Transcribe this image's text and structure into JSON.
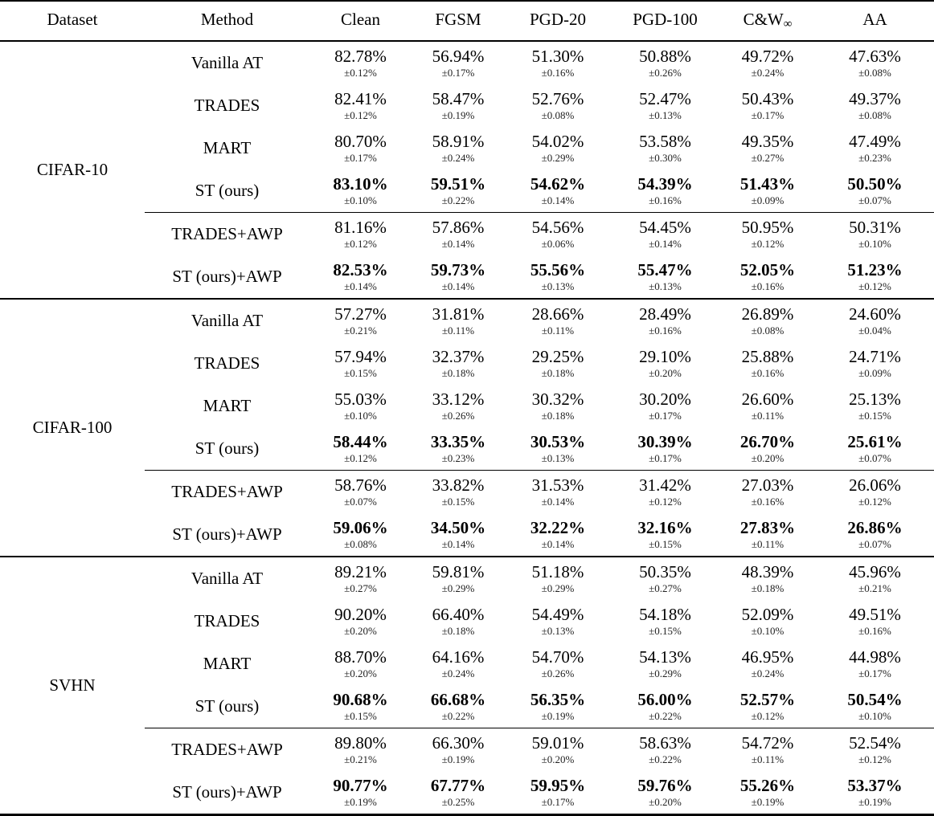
{
  "colors": {
    "text": "#000000",
    "rule": "#000000",
    "background": "#ffffff"
  },
  "table": {
    "columns": [
      {
        "label": "Dataset",
        "sub": ""
      },
      {
        "label": "Method",
        "sub": ""
      },
      {
        "label": "Clean",
        "sub": ""
      },
      {
        "label": "FGSM",
        "sub": ""
      },
      {
        "label": "PGD-20",
        "sub": ""
      },
      {
        "label": "PGD-100",
        "sub": ""
      },
      {
        "label": "C&W",
        "sub": "∞"
      },
      {
        "label": "AA",
        "sub": ""
      }
    ],
    "sections": [
      {
        "dataset": "CIFAR-10",
        "rows": [
          {
            "method": "Vanilla AT",
            "bold": false,
            "midrule_above": false,
            "cells": [
              {
                "v": "82.78%",
                "e": "±0.12%"
              },
              {
                "v": "56.94%",
                "e": "±0.17%"
              },
              {
                "v": "51.30%",
                "e": "±0.16%"
              },
              {
                "v": "50.88%",
                "e": "±0.26%"
              },
              {
                "v": "49.72%",
                "e": "±0.24%"
              },
              {
                "v": "47.63%",
                "e": "±0.08%"
              }
            ]
          },
          {
            "method": "TRADES",
            "bold": false,
            "midrule_above": false,
            "cells": [
              {
                "v": "82.41%",
                "e": "±0.12%"
              },
              {
                "v": "58.47%",
                "e": "±0.19%"
              },
              {
                "v": "52.76%",
                "e": "±0.08%"
              },
              {
                "v": "52.47%",
                "e": "±0.13%"
              },
              {
                "v": "50.43%",
                "e": "±0.17%"
              },
              {
                "v": "49.37%",
                "e": "±0.08%"
              }
            ]
          },
          {
            "method": "MART",
            "bold": false,
            "midrule_above": false,
            "cells": [
              {
                "v": "80.70%",
                "e": "±0.17%"
              },
              {
                "v": "58.91%",
                "e": "±0.24%"
              },
              {
                "v": "54.02%",
                "e": "±0.29%"
              },
              {
                "v": "53.58%",
                "e": "±0.30%"
              },
              {
                "v": "49.35%",
                "e": "±0.27%"
              },
              {
                "v": "47.49%",
                "e": "±0.23%"
              }
            ]
          },
          {
            "method": "ST (ours)",
            "bold": true,
            "midrule_above": false,
            "cells": [
              {
                "v": "83.10%",
                "e": "±0.10%"
              },
              {
                "v": "59.51%",
                "e": "±0.22%"
              },
              {
                "v": "54.62%",
                "e": "±0.14%"
              },
              {
                "v": "54.39%",
                "e": "±0.16%"
              },
              {
                "v": "51.43%",
                "e": "±0.09%"
              },
              {
                "v": "50.50%",
                "e": "±0.07%"
              }
            ]
          },
          {
            "method": "TRADES+AWP",
            "bold": false,
            "midrule_above": true,
            "cells": [
              {
                "v": "81.16%",
                "e": "±0.12%"
              },
              {
                "v": "57.86%",
                "e": "±0.14%"
              },
              {
                "v": "54.56%",
                "e": "±0.06%"
              },
              {
                "v": "54.45%",
                "e": "±0.14%"
              },
              {
                "v": "50.95%",
                "e": "±0.12%"
              },
              {
                "v": "50.31%",
                "e": "±0.10%"
              }
            ]
          },
          {
            "method": "ST (ours)+AWP",
            "bold": true,
            "midrule_above": false,
            "cells": [
              {
                "v": "82.53%",
                "e": "±0.14%"
              },
              {
                "v": "59.73%",
                "e": "±0.14%"
              },
              {
                "v": "55.56%",
                "e": "±0.13%"
              },
              {
                "v": "55.47%",
                "e": "±0.13%"
              },
              {
                "v": "52.05%",
                "e": "±0.16%"
              },
              {
                "v": "51.23%",
                "e": "±0.12%"
              }
            ]
          }
        ]
      },
      {
        "dataset": "CIFAR-100",
        "rows": [
          {
            "method": "Vanilla AT",
            "bold": false,
            "midrule_above": false,
            "cells": [
              {
                "v": "57.27%",
                "e": "±0.21%"
              },
              {
                "v": "31.81%",
                "e": "±0.11%"
              },
              {
                "v": "28.66%",
                "e": "±0.11%"
              },
              {
                "v": "28.49%",
                "e": "±0.16%"
              },
              {
                "v": "26.89%",
                "e": "±0.08%"
              },
              {
                "v": "24.60%",
                "e": "±0.04%"
              }
            ]
          },
          {
            "method": "TRADES",
            "bold": false,
            "midrule_above": false,
            "cells": [
              {
                "v": "57.94%",
                "e": "±0.15%"
              },
              {
                "v": "32.37%",
                "e": "±0.18%"
              },
              {
                "v": "29.25%",
                "e": "±0.18%"
              },
              {
                "v": "29.10%",
                "e": "±0.20%"
              },
              {
                "v": "25.88%",
                "e": "±0.16%"
              },
              {
                "v": "24.71%",
                "e": "±0.09%"
              }
            ]
          },
          {
            "method": "MART",
            "bold": false,
            "midrule_above": false,
            "cells": [
              {
                "v": "55.03%",
                "e": "±0.10%"
              },
              {
                "v": "33.12%",
                "e": "±0.26%"
              },
              {
                "v": "30.32%",
                "e": "±0.18%"
              },
              {
                "v": "30.20%",
                "e": "±0.17%"
              },
              {
                "v": "26.60%",
                "e": "±0.11%"
              },
              {
                "v": "25.13%",
                "e": "±0.15%"
              }
            ]
          },
          {
            "method": "ST (ours)",
            "bold": true,
            "midrule_above": false,
            "cells": [
              {
                "v": "58.44%",
                "e": "±0.12%"
              },
              {
                "v": "33.35%",
                "e": "±0.23%"
              },
              {
                "v": "30.53%",
                "e": "±0.13%"
              },
              {
                "v": "30.39%",
                "e": "±0.17%"
              },
              {
                "v": "26.70%",
                "e": "±0.20%"
              },
              {
                "v": "25.61%",
                "e": "±0.07%"
              }
            ]
          },
          {
            "method": "TRADES+AWP",
            "bold": false,
            "midrule_above": true,
            "cells": [
              {
                "v": "58.76%",
                "e": "±0.07%"
              },
              {
                "v": "33.82%",
                "e": "±0.15%"
              },
              {
                "v": "31.53%",
                "e": "±0.14%"
              },
              {
                "v": "31.42%",
                "e": "±0.12%"
              },
              {
                "v": "27.03%",
                "e": "±0.16%"
              },
              {
                "v": "26.06%",
                "e": "±0.12%"
              }
            ]
          },
          {
            "method": "ST (ours)+AWP",
            "bold": true,
            "midrule_above": false,
            "cells": [
              {
                "v": "59.06%",
                "e": "±0.08%"
              },
              {
                "v": "34.50%",
                "e": "±0.14%"
              },
              {
                "v": "32.22%",
                "e": "±0.14%"
              },
              {
                "v": "32.16%",
                "e": "±0.15%"
              },
              {
                "v": "27.83%",
                "e": "±0.11%"
              },
              {
                "v": "26.86%",
                "e": "±0.07%"
              }
            ]
          }
        ]
      },
      {
        "dataset": "SVHN",
        "rows": [
          {
            "method": "Vanilla AT",
            "bold": false,
            "midrule_above": false,
            "cells": [
              {
                "v": "89.21%",
                "e": "±0.27%"
              },
              {
                "v": "59.81%",
                "e": "±0.29%"
              },
              {
                "v": "51.18%",
                "e": "±0.29%"
              },
              {
                "v": "50.35%",
                "e": "±0.27%"
              },
              {
                "v": "48.39%",
                "e": "±0.18%"
              },
              {
                "v": "45.96%",
                "e": "±0.21%"
              }
            ]
          },
          {
            "method": "TRADES",
            "bold": false,
            "midrule_above": false,
            "cells": [
              {
                "v": "90.20%",
                "e": "±0.20%"
              },
              {
                "v": "66.40%",
                "e": "±0.18%"
              },
              {
                "v": "54.49%",
                "e": "±0.13%"
              },
              {
                "v": "54.18%",
                "e": "±0.15%"
              },
              {
                "v": "52.09%",
                "e": "±0.10%"
              },
              {
                "v": "49.51%",
                "e": "±0.16%"
              }
            ]
          },
          {
            "method": "MART",
            "bold": false,
            "midrule_above": false,
            "cells": [
              {
                "v": "88.70%",
                "e": "±0.20%"
              },
              {
                "v": "64.16%",
                "e": "±0.24%"
              },
              {
                "v": "54.70%",
                "e": "±0.26%"
              },
              {
                "v": "54.13%",
                "e": "±0.29%"
              },
              {
                "v": "46.95%",
                "e": "±0.24%"
              },
              {
                "v": "44.98%",
                "e": "±0.17%"
              }
            ]
          },
          {
            "method": "ST (ours)",
            "bold": true,
            "midrule_above": false,
            "cells": [
              {
                "v": "90.68%",
                "e": "±0.15%"
              },
              {
                "v": "66.68%",
                "e": "±0.22%"
              },
              {
                "v": "56.35%",
                "e": "±0.19%"
              },
              {
                "v": "56.00%",
                "e": "±0.22%"
              },
              {
                "v": "52.57%",
                "e": "±0.12%"
              },
              {
                "v": "50.54%",
                "e": "±0.10%"
              }
            ]
          },
          {
            "method": "TRADES+AWP",
            "bold": false,
            "midrule_above": true,
            "cells": [
              {
                "v": "89.80%",
                "e": "±0.21%"
              },
              {
                "v": "66.30%",
                "e": "±0.19%"
              },
              {
                "v": "59.01%",
                "e": "±0.20%"
              },
              {
                "v": "58.63%",
                "e": "±0.22%"
              },
              {
                "v": "54.72%",
                "e": "±0.11%"
              },
              {
                "v": "52.54%",
                "e": "±0.12%"
              }
            ]
          },
          {
            "method": "ST (ours)+AWP",
            "bold": true,
            "midrule_above": false,
            "cells": [
              {
                "v": "90.77%",
                "e": "±0.19%"
              },
              {
                "v": "67.77%",
                "e": "±0.25%"
              },
              {
                "v": "59.95%",
                "e": "±0.17%"
              },
              {
                "v": "59.76%",
                "e": "±0.20%"
              },
              {
                "v": "55.26%",
                "e": "±0.19%"
              },
              {
                "v": "53.37%",
                "e": "±0.19%"
              }
            ]
          }
        ]
      }
    ]
  }
}
